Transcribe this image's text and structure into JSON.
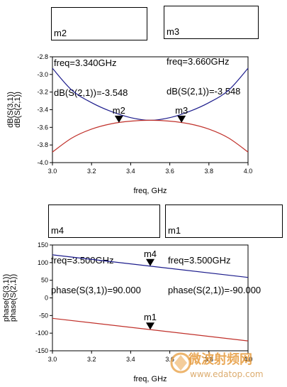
{
  "chart_data": [
    {
      "type": "line",
      "title": "",
      "xlabel": "freq, GHz",
      "ylabel": [
        "dB(S(3,1))",
        "dB(S(2,1))"
      ],
      "xlim": [
        3.0,
        4.0
      ],
      "ylim": [
        -4.0,
        -2.8
      ],
      "xticks": [
        "3.0",
        "3.2",
        "3.4",
        "3.6",
        "3.8",
        "4.0"
      ],
      "yticks": [
        "-2.8",
        "-3.0",
        "-3.2",
        "-3.4",
        "-3.6",
        "-3.8",
        "-4.0"
      ],
      "x": [
        3.0,
        3.1,
        3.2,
        3.3,
        3.4,
        3.5,
        3.6,
        3.7,
        3.8,
        3.9,
        4.0
      ],
      "series": [
        {
          "name": "dB(S(3,1))",
          "color": "#1c1c8c",
          "values": [
            -2.93,
            -3.18,
            -3.32,
            -3.42,
            -3.49,
            -3.52,
            -3.49,
            -3.42,
            -3.32,
            -3.18,
            -2.93
          ]
        },
        {
          "name": "dB(S(2,1))",
          "color": "#c0302a",
          "values": [
            -3.88,
            -3.72,
            -3.62,
            -3.56,
            -3.53,
            -3.52,
            -3.53,
            -3.56,
            -3.62,
            -3.72,
            -3.88
          ]
        }
      ],
      "markers": [
        {
          "id": "m2",
          "x": 3.34,
          "y": -3.548,
          "label": "m2"
        },
        {
          "id": "m3",
          "x": 3.66,
          "y": -3.548,
          "label": "m3"
        }
      ],
      "grid": false
    },
    {
      "type": "line",
      "title": "",
      "xlabel": "freq, GHz",
      "ylabel": [
        "phase(S(3,1))",
        "phase(S(2,1))"
      ],
      "xlim": [
        3.0,
        4.0
      ],
      "ylim": [
        -150,
        150
      ],
      "xticks": [
        "3.0",
        "3.2",
        "3.4",
        "3.6",
        "3.8",
        "4.0"
      ],
      "yticks": [
        "150",
        "100",
        "50",
        "0",
        "-50",
        "-100",
        "-150"
      ],
      "x": [
        3.0,
        4.0
      ],
      "series": [
        {
          "name": "phase(S(3,1))",
          "color": "#1c1c8c",
          "values": [
            122,
            58
          ]
        },
        {
          "name": "phase(S(2,1))",
          "color": "#c0302a",
          "values": [
            -58,
            -122
          ]
        }
      ],
      "markers": [
        {
          "id": "m4",
          "x": 3.5,
          "y": 90.0,
          "label": "m4"
        },
        {
          "id": "m1",
          "x": 3.5,
          "y": -90.0,
          "label": "m1"
        }
      ],
      "grid": false
    }
  ],
  "marker_boxes": {
    "m2": [
      "m2",
      "freq=3.340GHz",
      "dB(S(2,1))=-3.548"
    ],
    "m3": [
      "m3",
      "freq=3.660GHz",
      "dB(S(2,1))=-3.548"
    ],
    "m4": [
      "m4",
      "freq=3.500GHz",
      "phase(S(3,1))=90.000"
    ],
    "m1": [
      "m1",
      "freq=3.500GHz",
      "phase(S(2,1))=-90.000"
    ]
  },
  "watermark": {
    "line1": "微波射频网",
    "line2": "www.edatop.com"
  }
}
